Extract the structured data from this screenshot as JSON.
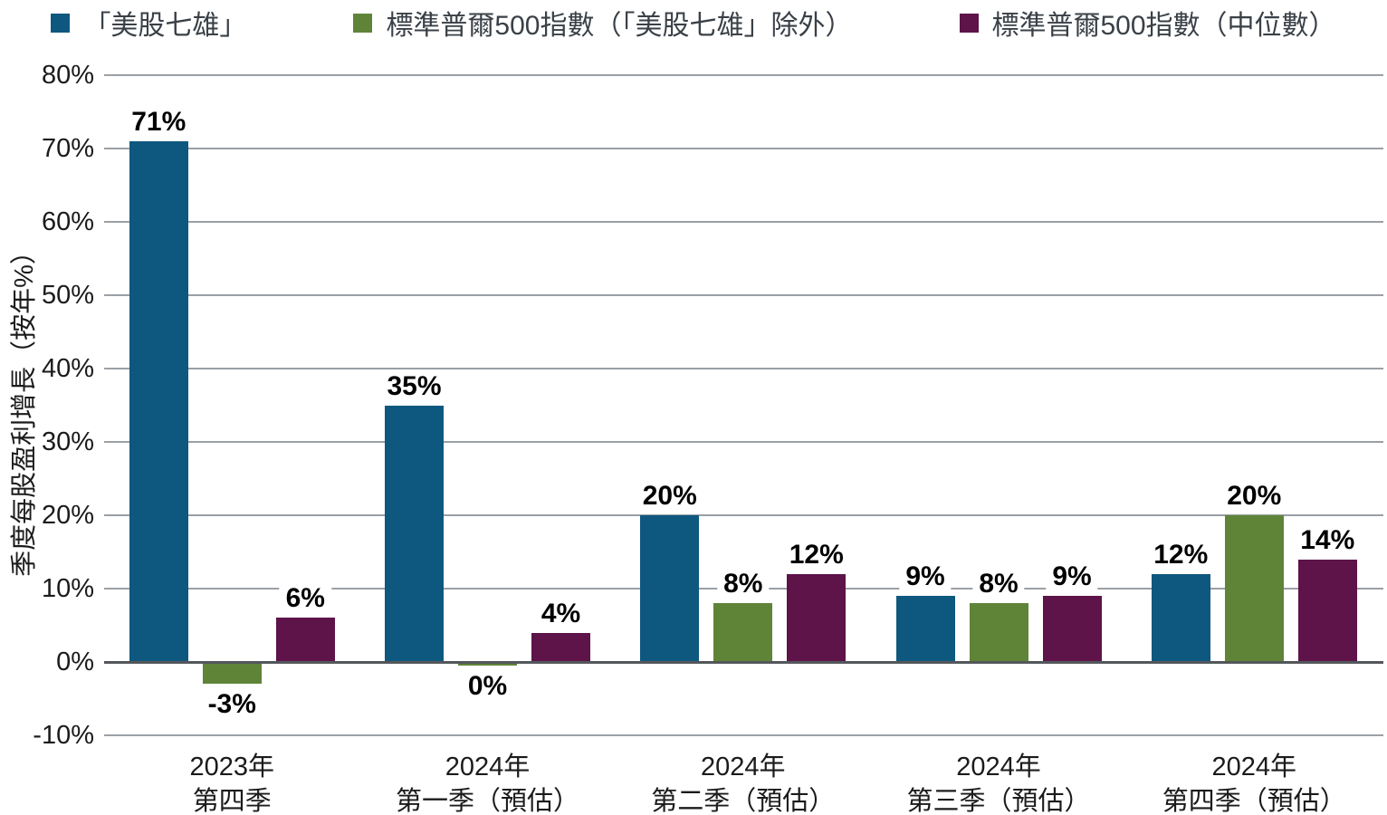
{
  "chart_data": {
    "type": "bar",
    "title": "",
    "ylabel": "季度每股盈利增長（按年%）",
    "xlabel": "",
    "categories": [
      [
        "2023年",
        "第四季"
      ],
      [
        "2024年",
        "第一季（預估）"
      ],
      [
        "2024年",
        "第二季（預估）"
      ],
      [
        "2024年",
        "第三季（預估）"
      ],
      [
        "2024年",
        "第四季（預估）"
      ]
    ],
    "series": [
      {
        "name": "「美股七雄」",
        "color": "#0e587f",
        "values": [
          71,
          35,
          20,
          9,
          12
        ]
      },
      {
        "name": "標準普爾500指數（「美股七雄」除外）",
        "color": "#5f8438",
        "values": [
          -3,
          0,
          8,
          8,
          20
        ]
      },
      {
        "name": "標準普爾500指數（中位數）",
        "color": "#5e1349",
        "values": [
          6,
          4,
          12,
          9,
          14
        ]
      }
    ],
    "value_labels": [
      [
        "71%",
        "35%",
        "20%",
        "9%",
        "12%"
      ],
      [
        "-3%",
        "0%",
        "8%",
        "8%",
        "20%"
      ],
      [
        "6%",
        "4%",
        "12%",
        "9%",
        "14%"
      ]
    ],
    "ylim": [
      -10,
      80
    ],
    "ytick_step": 10,
    "ytick_labels": [
      "80%",
      "70%",
      "60%",
      "50%",
      "40%",
      "30%",
      "20%",
      "10%",
      "0%",
      "-10%"
    ],
    "grid": true,
    "legend_position": "top",
    "colors": {
      "grid": "#9aa0a5",
      "zero_line": "#53575b",
      "value_label": "#000000",
      "tick_text": "#1b1b1b",
      "legend_text": "#3a4047",
      "background": "#ffffff"
    }
  }
}
